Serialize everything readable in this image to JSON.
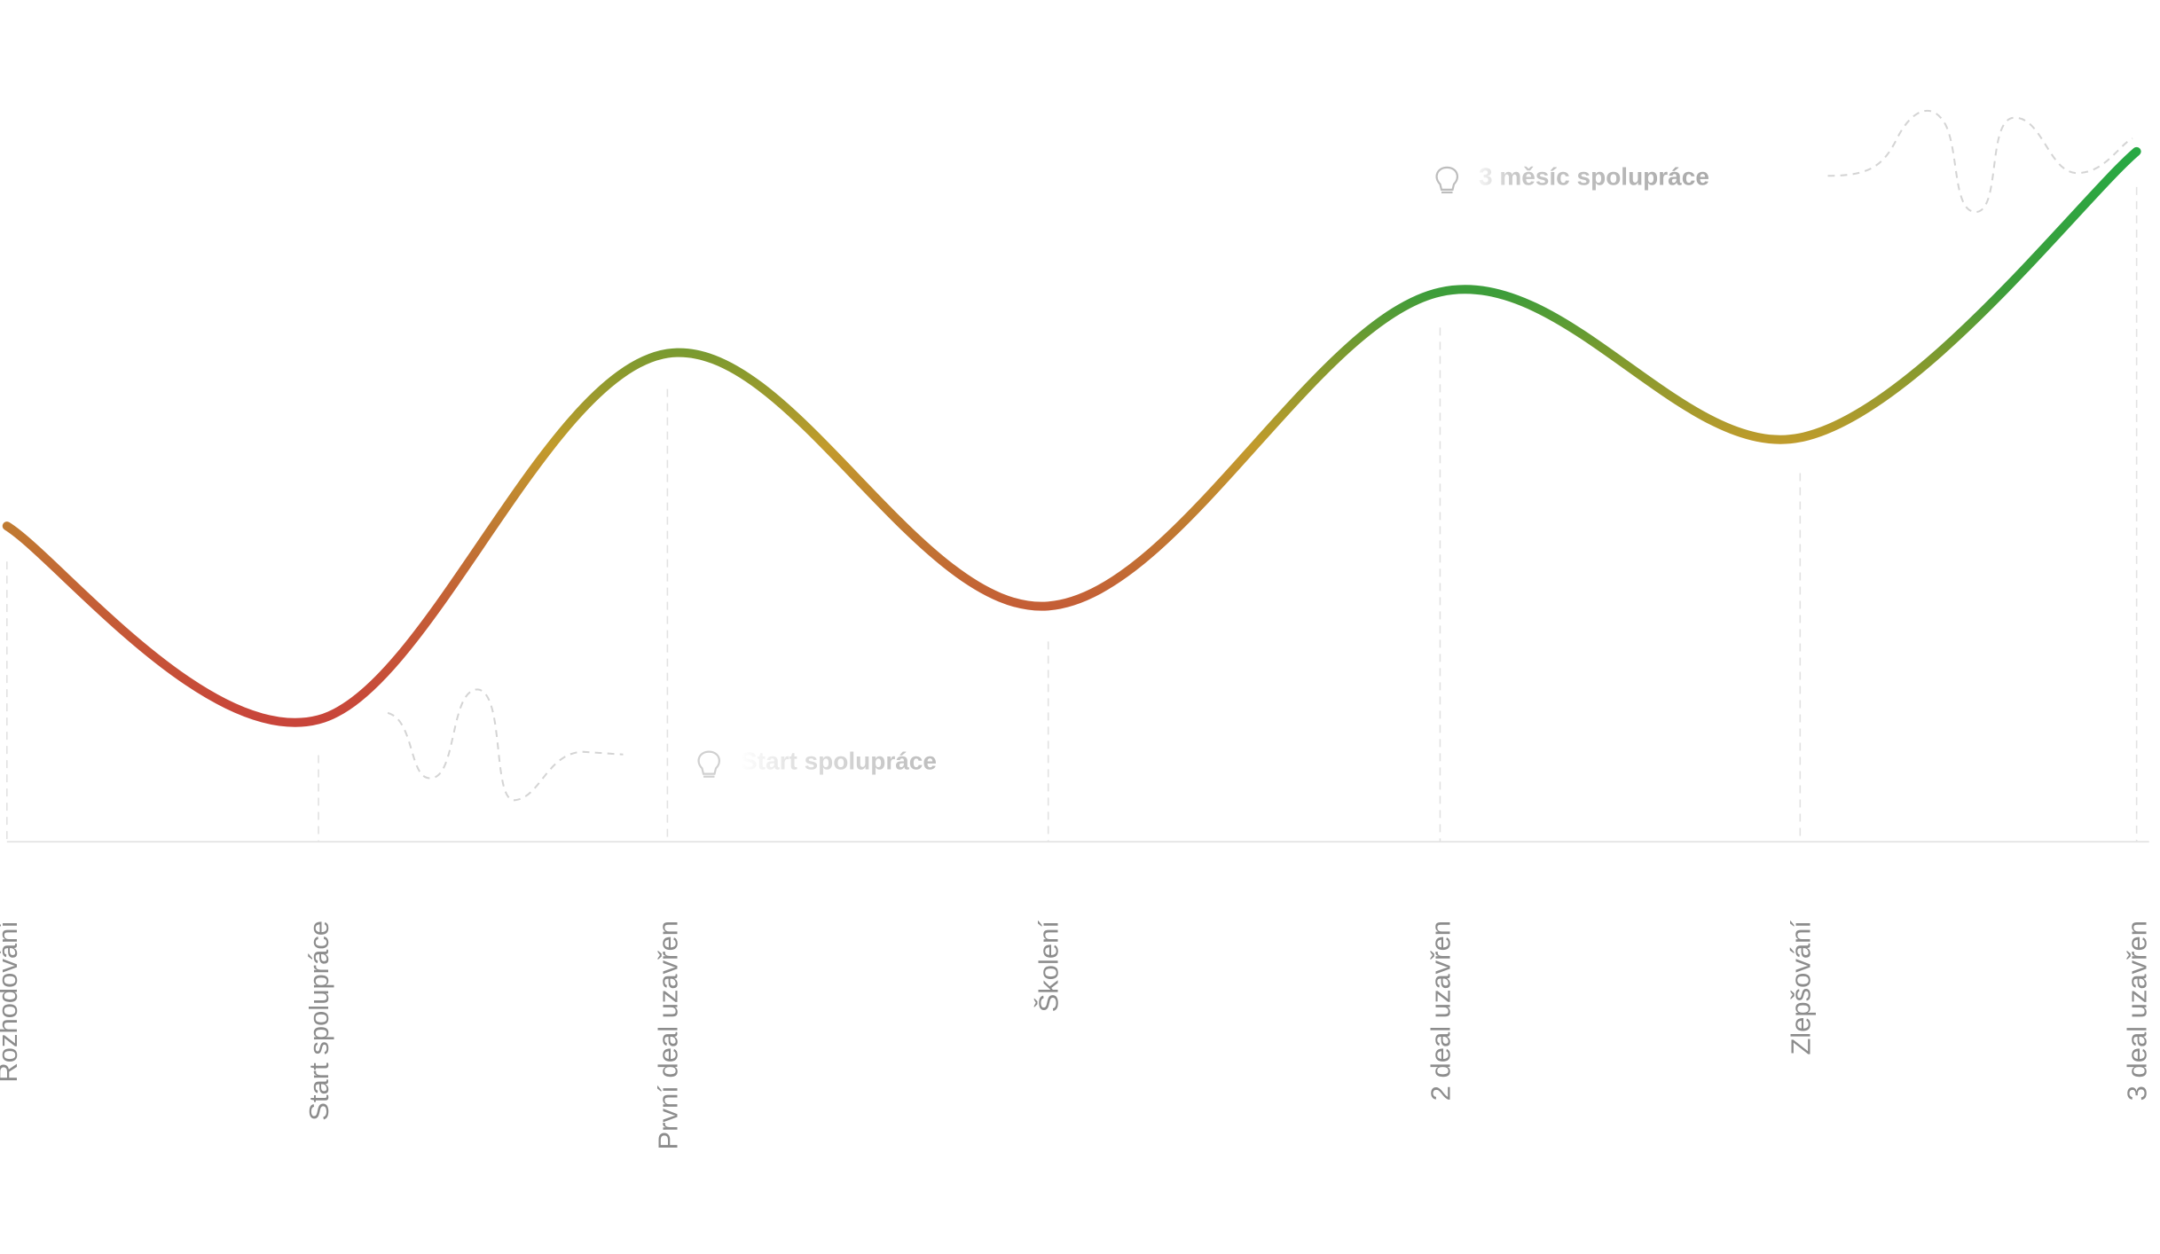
{
  "chart_data": {
    "type": "line",
    "categories": [
      "Rozhodování",
      "Start spolupráce",
      "První deal uzavřen",
      "Školení",
      "2 deal uzavřen",
      "Zlepšování",
      "3 deal uzavřen"
    ],
    "values": [
      37.5,
      14.5,
      58,
      28,
      65.3,
      48,
      82
    ],
    "ylim": [
      0,
      100
    ],
    "annotations": [
      "Start spolupráce",
      "3 měsíc spolupráce"
    ]
  }
}
